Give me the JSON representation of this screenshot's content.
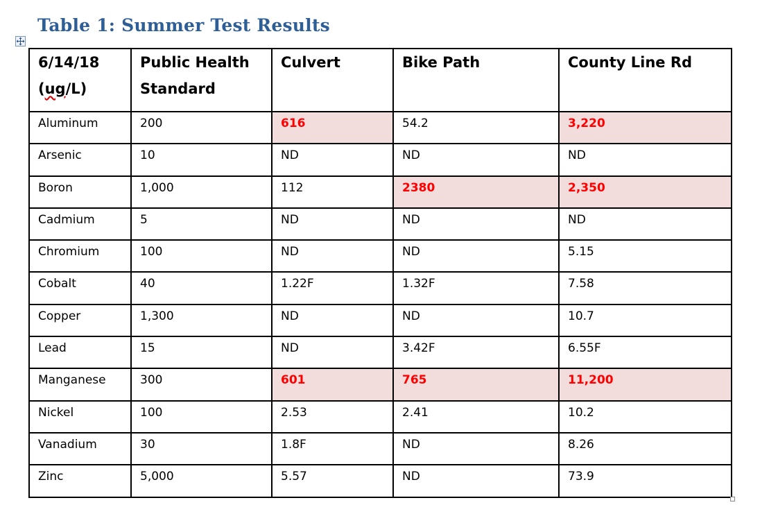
{
  "caption": "Table 1: Summer Test Results",
  "table": {
    "headers": [
      {
        "line1": "6/14/18",
        "line2_pre": "(",
        "line2_spell": "ug",
        "line2_post": "/L)"
      },
      {
        "line1": "Public Health",
        "line2": "Standard"
      },
      {
        "line1": "Culvert"
      },
      {
        "line1": "Bike Path"
      },
      {
        "line1": "County Line Rd"
      }
    ],
    "rows": [
      {
        "cells": [
          "Aluminum",
          "200",
          "616",
          "54.2",
          "3,220"
        ],
        "exceed": [
          false,
          false,
          true,
          false,
          true
        ]
      },
      {
        "cells": [
          "Arsenic",
          "10",
          "ND",
          "ND",
          "ND"
        ],
        "exceed": [
          false,
          false,
          false,
          false,
          false
        ]
      },
      {
        "cells": [
          "Boron",
          "1,000",
          "112",
          "2380",
          "2,350"
        ],
        "exceed": [
          false,
          false,
          false,
          true,
          true
        ]
      },
      {
        "cells": [
          "Cadmium",
          "5",
          "ND",
          "ND",
          "ND"
        ],
        "exceed": [
          false,
          false,
          false,
          false,
          false
        ]
      },
      {
        "cells": [
          "Chromium",
          "100",
          "ND",
          "ND",
          "5.15"
        ],
        "exceed": [
          false,
          false,
          false,
          false,
          false
        ]
      },
      {
        "cells": [
          "Cobalt",
          "40",
          "1.22F",
          "1.32F",
          "7.58"
        ],
        "exceed": [
          false,
          false,
          false,
          false,
          false
        ]
      },
      {
        "cells": [
          "Copper",
          "1,300",
          "ND",
          "ND",
          "10.7"
        ],
        "exceed": [
          false,
          false,
          false,
          false,
          false
        ]
      },
      {
        "cells": [
          "Lead",
          "15",
          "ND",
          "3.42F",
          "6.55F"
        ],
        "exceed": [
          false,
          false,
          false,
          false,
          false
        ]
      },
      {
        "cells": [
          "Manganese",
          "300",
          "601",
          "765",
          "11,200"
        ],
        "exceed": [
          false,
          false,
          true,
          true,
          true
        ]
      },
      {
        "cells": [
          "Nickel",
          "100",
          "2.53",
          "2.41",
          "10.2"
        ],
        "exceed": [
          false,
          false,
          false,
          false,
          false
        ]
      },
      {
        "cells": [
          "Vanadium",
          "30",
          "1.8F",
          "ND",
          "8.26"
        ],
        "exceed": [
          false,
          false,
          false,
          false,
          false
        ]
      },
      {
        "cells": [
          "Zinc",
          "5,000",
          "5.57",
          "ND",
          "73.9"
        ],
        "exceed": [
          false,
          false,
          false,
          false,
          false
        ]
      }
    ]
  },
  "colors": {
    "caption": "#2e5e96",
    "exceed_background": "#f2dcdc",
    "exceed_text": "#ff0000"
  },
  "icons": {
    "table_move_handle": "four-arrow-move-icon",
    "table_resize_handle": "resize-square-icon"
  }
}
